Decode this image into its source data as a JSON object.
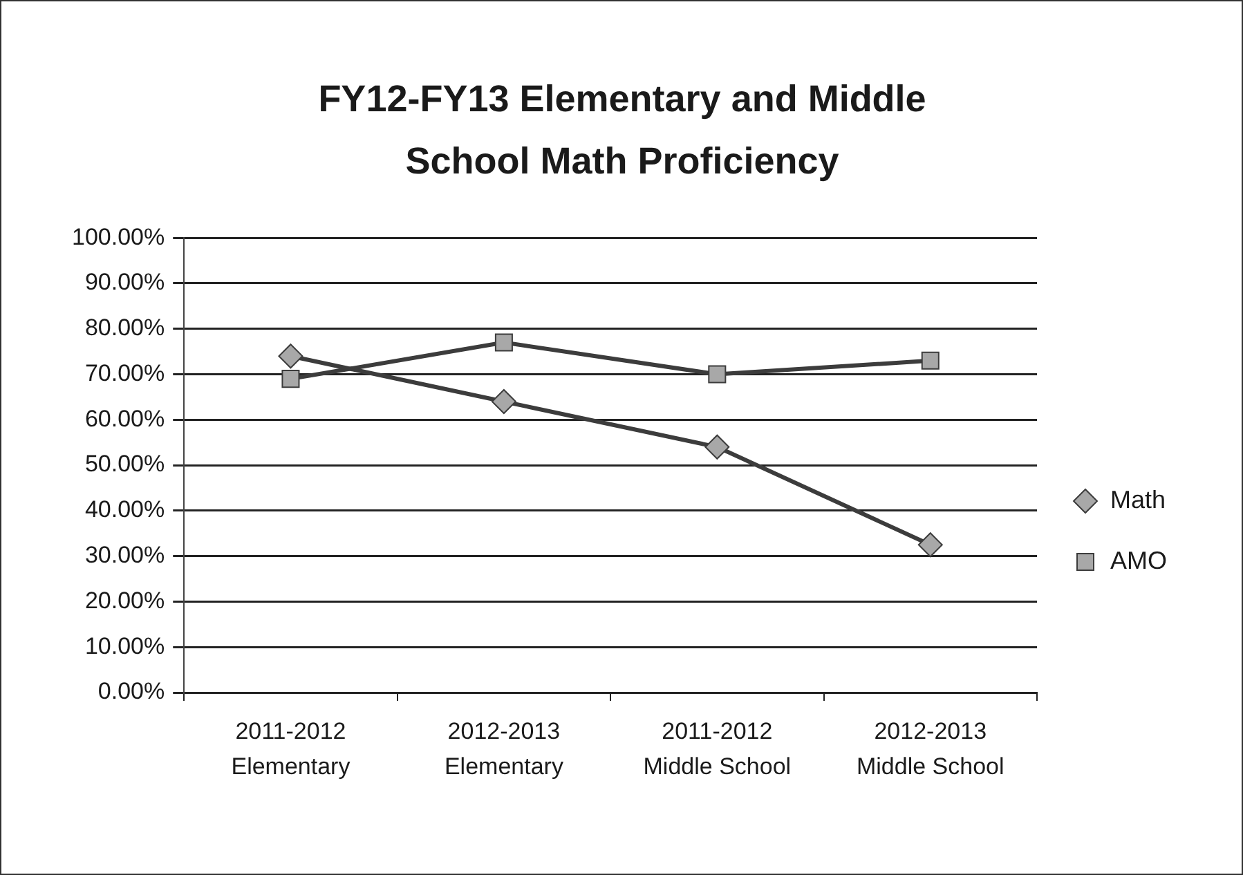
{
  "chart_data": {
    "type": "line",
    "title": "FY12-FY13 Elementary and Middle School Math Proficiency",
    "categories": [
      "2011-2012 Elementary",
      "2012-2013 Elementary",
      "2011-2012 Middle School",
      "2012-2013 Middle School"
    ],
    "series": [
      {
        "name": "Math",
        "color": "#3c3c3c",
        "marker": "diamond",
        "values": [
          74,
          64,
          54,
          32.5
        ]
      },
      {
        "name": "AMO",
        "color": "#3c3c3c",
        "marker": "square",
        "values": [
          69,
          77,
          70,
          73
        ]
      }
    ],
    "ylim": [
      0,
      100
    ],
    "yticks": [
      {
        "value": 0,
        "label": "0.00%"
      },
      {
        "value": 10,
        "label": "10.00%"
      },
      {
        "value": 20,
        "label": "20.00%"
      },
      {
        "value": 30,
        "label": "30.00%"
      },
      {
        "value": 40,
        "label": "40.00%"
      },
      {
        "value": 50,
        "label": "50.00%"
      },
      {
        "value": 60,
        "label": "60.00%"
      },
      {
        "value": 70,
        "label": "70.00%"
      },
      {
        "value": 80,
        "label": "80.00%"
      },
      {
        "value": 90,
        "label": "90.00%"
      },
      {
        "value": 100,
        "label": "100.00%"
      }
    ],
    "grid": "y",
    "legend": "right",
    "line_style": "solid"
  }
}
